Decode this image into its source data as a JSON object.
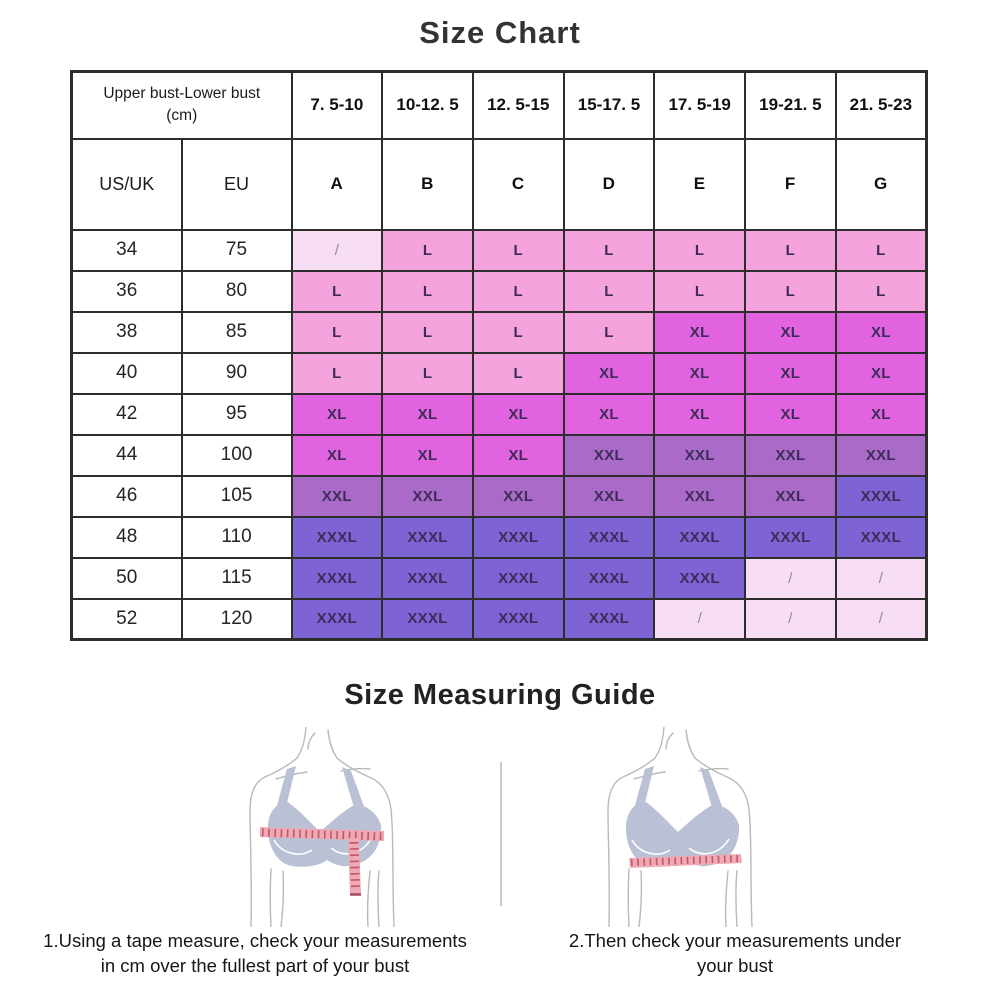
{
  "chart_data": {
    "type": "table",
    "title": "Size Chart",
    "corner_header": {
      "line1": "Upper bust-Lower bust",
      "line2": "(cm)"
    },
    "bust_difference_columns": [
      "7. 5-10",
      "10-12. 5",
      "12. 5-15",
      "15-17. 5",
      "17. 5-19",
      "19-21. 5",
      "21. 5-23"
    ],
    "id_columns": [
      "US/UK",
      "EU"
    ],
    "cup_columns": [
      "A",
      "B",
      "C",
      "D",
      "E",
      "F",
      "G"
    ],
    "rows": [
      {
        "us_uk": "34",
        "eu": "75",
        "sizes": [
          "/",
          "L",
          "L",
          "L",
          "L",
          "L",
          "L"
        ]
      },
      {
        "us_uk": "36",
        "eu": "80",
        "sizes": [
          "L",
          "L",
          "L",
          "L",
          "L",
          "L",
          "L"
        ]
      },
      {
        "us_uk": "38",
        "eu": "85",
        "sizes": [
          "L",
          "L",
          "L",
          "L",
          "XL",
          "XL",
          "XL"
        ]
      },
      {
        "us_uk": "40",
        "eu": "90",
        "sizes": [
          "L",
          "L",
          "L",
          "XL",
          "XL",
          "XL",
          "XL"
        ]
      },
      {
        "us_uk": "42",
        "eu": "95",
        "sizes": [
          "XL",
          "XL",
          "XL",
          "XL",
          "XL",
          "XL",
          "XL"
        ]
      },
      {
        "us_uk": "44",
        "eu": "100",
        "sizes": [
          "XL",
          "XL",
          "XL",
          "XXL",
          "XXL",
          "XXL",
          "XXL"
        ]
      },
      {
        "us_uk": "46",
        "eu": "105",
        "sizes": [
          "XXL",
          "XXL",
          "XXL",
          "XXL",
          "XXL",
          "XXL",
          "XXXL"
        ]
      },
      {
        "us_uk": "48",
        "eu": "110",
        "sizes": [
          "XXXL",
          "XXXL",
          "XXXL",
          "XXXL",
          "XXXL",
          "XXXL",
          "XXXL"
        ]
      },
      {
        "us_uk": "50",
        "eu": "115",
        "sizes": [
          "XXXL",
          "XXXL",
          "XXXL",
          "XXXL",
          "XXXL",
          "/",
          "/"
        ]
      },
      {
        "us_uk": "52",
        "eu": "120",
        "sizes": [
          "XXXL",
          "XXXL",
          "XXXL",
          "XXXL",
          "/",
          "/",
          "/"
        ]
      }
    ],
    "legend_colors": {
      "/": "#f8def4",
      "L": "#f5a3dd",
      "XL": "#e163df",
      "XXL": "#aa6ac8",
      "XXXL": "#7d63d4"
    }
  },
  "measuring_guide": {
    "title": "Size Measuring Guide",
    "steps": [
      {
        "line1": "1.Using a tape measure, check your measurements",
        "line2": "in cm over the fullest part of your bust"
      },
      {
        "line1": "2.Then check your measurements under",
        "line2": "your bust"
      }
    ]
  }
}
